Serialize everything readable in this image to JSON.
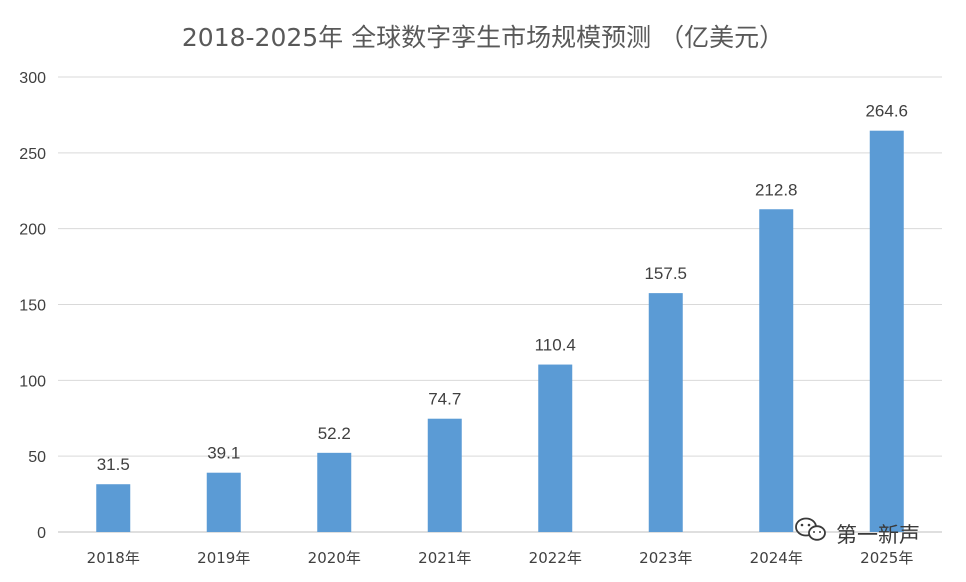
{
  "chart_data": {
    "type": "bar",
    "title": "2018-2025年 全球数字孪生市场规模预测 （亿美元）",
    "xlabel": "",
    "ylabel": "",
    "categories": [
      "2018年",
      "2019年",
      "2020年",
      "2021年",
      "2022年",
      "2023年",
      "2024年",
      "2025年"
    ],
    "values": [
      31.5,
      39.1,
      52.2,
      74.7,
      110.4,
      157.5,
      212.8,
      264.6
    ],
    "data_labels": [
      "31.5",
      "39.1",
      "52.2",
      "74.7",
      "110.4",
      "157.5",
      "212.8",
      "264.6"
    ],
    "ylim": [
      0,
      300
    ],
    "yticks": [
      0,
      50,
      100,
      150,
      200,
      250,
      300
    ],
    "grid": true,
    "legend": "none",
    "colors": {
      "bar": "#5b9bd5",
      "grid": "#d9d9d9",
      "text": "#404040",
      "title": "#595959"
    }
  },
  "watermark": {
    "text": "第一新声",
    "icon": "wechat-icon"
  }
}
